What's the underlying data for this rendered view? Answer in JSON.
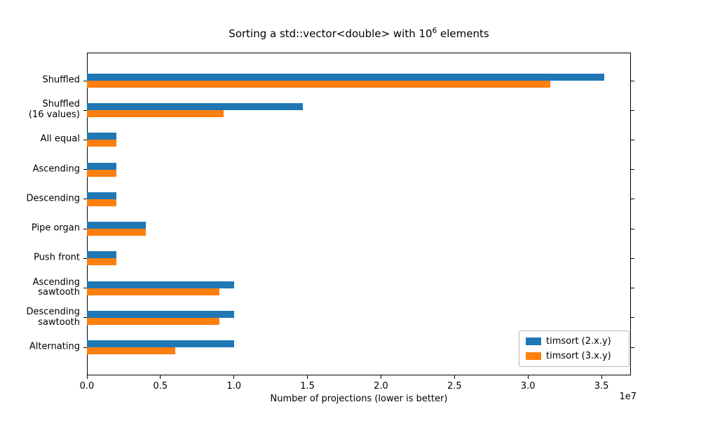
{
  "chart_data": {
    "type": "bar",
    "orientation": "horizontal",
    "title": {
      "prefix": "Sorting a std::vector<double> with 10",
      "superscript": "6",
      "suffix": " elements"
    },
    "xlabel": "Number of projections (lower is better)",
    "x_offset_label": "1e7",
    "categories": [
      "Shuffled",
      "Shuffled\n(16 values)",
      "All equal",
      "Ascending",
      "Descending",
      "Pipe organ",
      "Push front",
      "Ascending\nsawtooth",
      "Descending\nsawtooth",
      "Alternating"
    ],
    "series": [
      {
        "name": "timsort (2.x.y)",
        "color": "#1f77b4",
        "values": [
          35200000,
          14700000,
          2000000,
          2000000,
          2000000,
          4000000,
          2000000,
          10000000,
          10000000,
          10000000
        ]
      },
      {
        "name": "timsort (3.x.y)",
        "color": "#ff7f0e",
        "values": [
          31500000,
          9300000,
          2000000,
          2000000,
          2000000,
          4000000,
          2000000,
          9000000,
          9000000,
          6000000
        ]
      }
    ],
    "xlim": [
      0,
      37000000
    ],
    "xticks": {
      "values": [
        0,
        5000000,
        10000000,
        15000000,
        20000000,
        25000000,
        30000000,
        35000000
      ],
      "labels": [
        "0.0",
        "0.5",
        "1.0",
        "1.5",
        "2.0",
        "2.5",
        "3.0",
        "3.5"
      ]
    },
    "grid": false,
    "legend": {
      "position": "lower right",
      "entries": [
        "timsort (2.x.y)",
        "timsort (3.x.y)"
      ]
    }
  }
}
